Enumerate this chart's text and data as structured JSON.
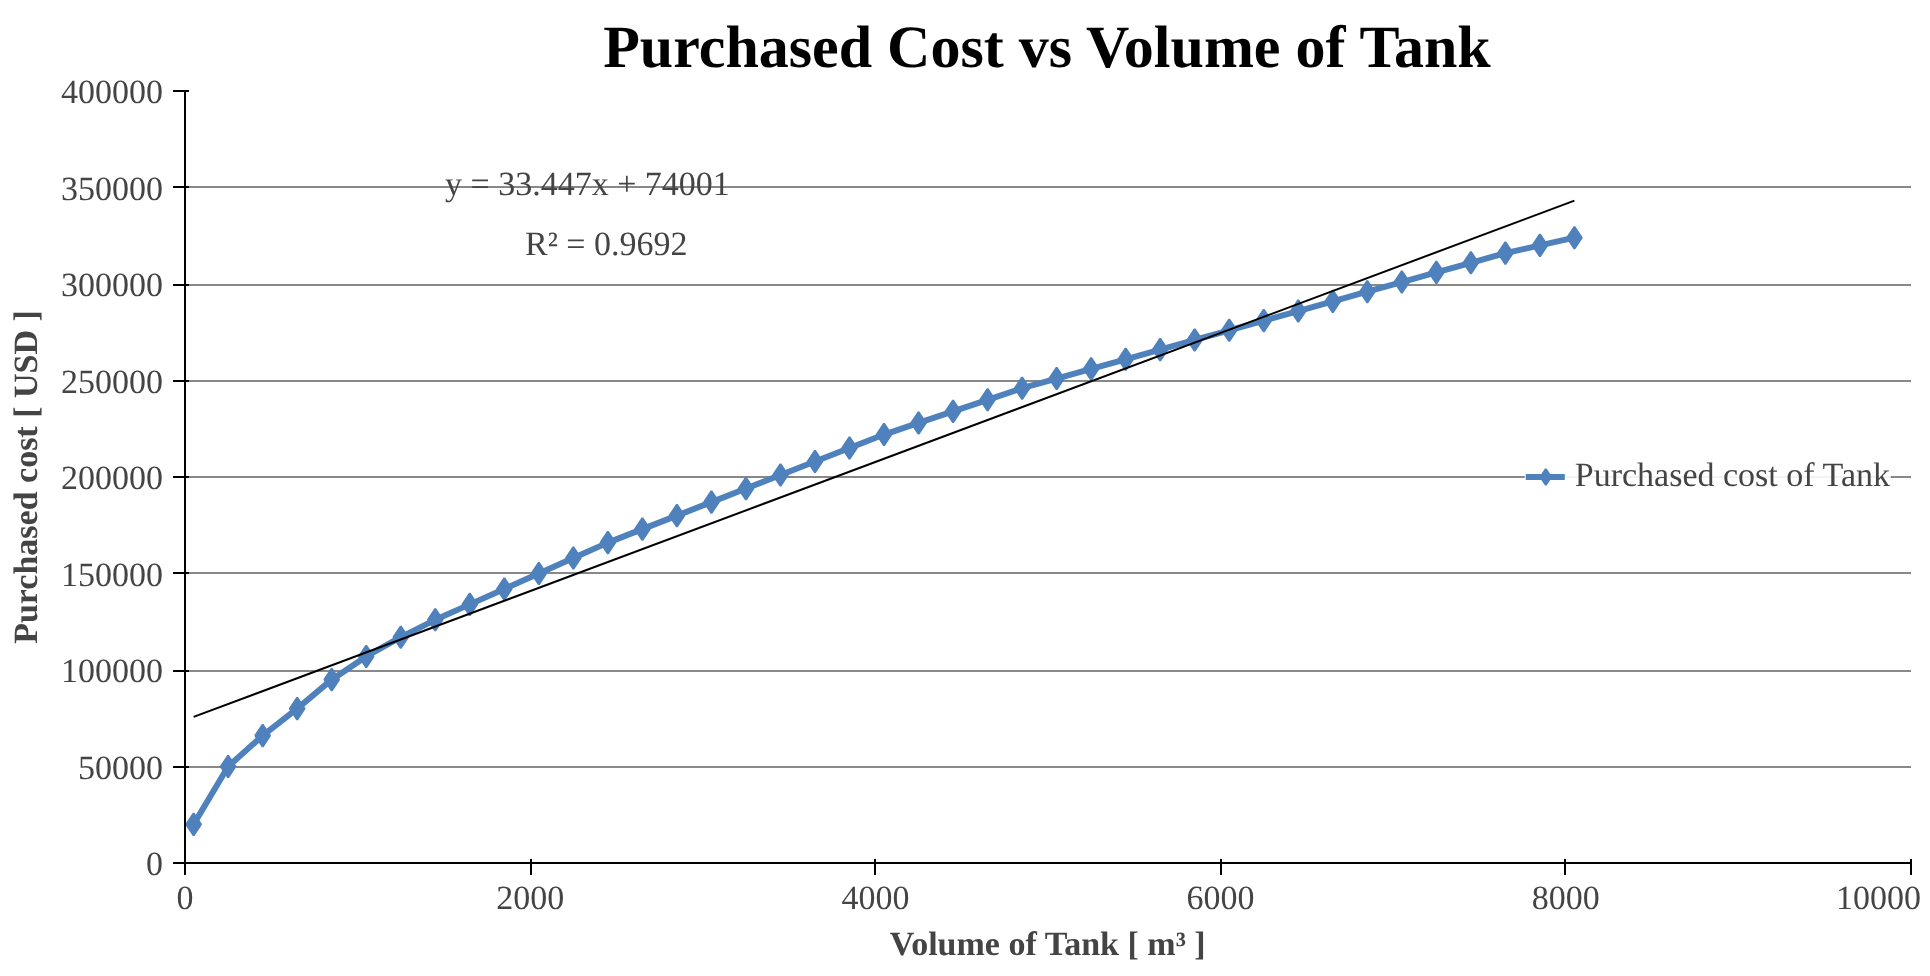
{
  "chart_data": {
    "type": "line",
    "title": "Purchased Cost vs Volume of Tank",
    "xlabel": "Volume of Tank [ m³ ]",
    "ylabel": "Purchased cost [ USD ]",
    "xlim": [
      0,
      10000
    ],
    "xticks": [
      0,
      2000,
      4000,
      6000,
      8000,
      10000
    ],
    "ylim": [
      0,
      400000
    ],
    "yticks": [
      0,
      50000,
      100000,
      150000,
      200000,
      250000,
      300000,
      350000,
      400000
    ],
    "grid": "y",
    "legend": "right",
    "annotations": [
      "y = 33.447x + 74001",
      "R² = 0.9692"
    ],
    "series": [
      {
        "name": "Purchased cost of Tank",
        "marker": "diamond",
        "color": "#4f81bd",
        "x": [
          50,
          250,
          450,
          650,
          850,
          1050,
          1250,
          1450,
          1650,
          1850,
          2050,
          2250,
          2450,
          2650,
          2850,
          3050,
          3250,
          3450,
          3650,
          3850,
          4050,
          4250,
          4450,
          4650,
          4850,
          5050,
          5250,
          5450,
          5650,
          5850,
          6050,
          6250,
          6450,
          6650,
          6850,
          7050,
          7250,
          7450,
          7650,
          7850,
          8050
        ],
        "values": [
          20000,
          50000,
          66000,
          80000,
          95000,
          107000,
          117000,
          126000,
          134000,
          142000,
          150000,
          158000,
          166000,
          173000,
          180000,
          187000,
          194000,
          201000,
          208000,
          215000,
          222000,
          228000,
          234000,
          240000,
          246000,
          251000,
          256000,
          261000,
          266000,
          271000,
          276000,
          281000,
          286000,
          291000,
          296000,
          301000,
          306000,
          311000,
          316000,
          320000,
          324000
        ]
      },
      {
        "type": "line",
        "marker": "none",
        "color": "#000000",
        "x": [
          50,
          8050
        ],
        "values": [
          75700,
          343200
        ]
      }
    ]
  }
}
